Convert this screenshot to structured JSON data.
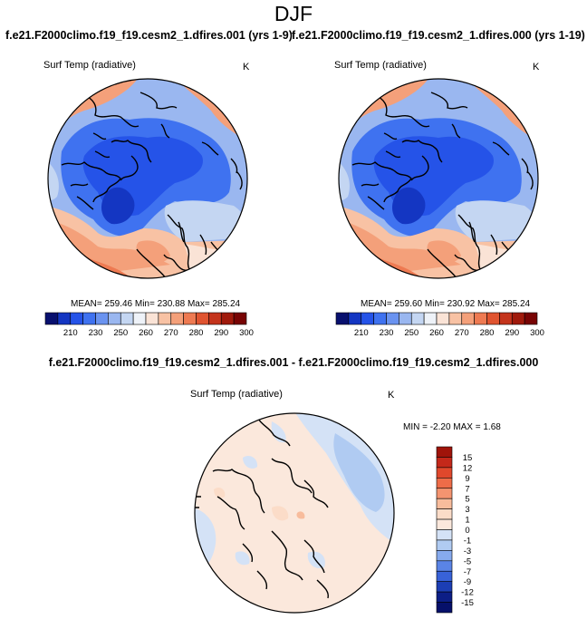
{
  "figure": {
    "title": "DJF",
    "subtitle_left": "f.e21.F2000climo.f19_f19.cesm2_1.dfires.001 (yrs 1-9)",
    "subtitle_right": "f.e21.F2000climo.f19_f19.cesm2_1.dfires.000 (yrs 1-19)",
    "diff_title": "f.e21.F2000climo.f19_f19.cesm2_1.dfires.001 - f.e21.F2000climo.f19_f19.cesm2_1.dfires.000"
  },
  "panels": [
    {
      "variable": "Surf Temp (radiative)",
      "units": "K",
      "stats_text": "MEAN= 259.46  Min= 230.88  Max= 285.24",
      "mean": 259.46,
      "min": 230.88,
      "max": 285.24
    },
    {
      "variable": "Surf Temp (radiative)",
      "units": "K",
      "stats_text": "MEAN= 259.60  Min= 230.92  Max= 285.24",
      "mean": 259.6,
      "min": 230.92,
      "max": 285.24
    },
    {
      "variable": "Surf Temp (radiative)",
      "units": "K",
      "stats_text": "MIN =  -2.20 MAX =   1.68",
      "min": -2.2,
      "max": 1.68
    }
  ],
  "colorbar_abs": {
    "tick_labels": [
      "210",
      "230",
      "250",
      "260",
      "270",
      "280",
      "290",
      "300"
    ],
    "colors": [
      "#08106e",
      "#1436c2",
      "#2553e8",
      "#3f72f0",
      "#6a93f0",
      "#9ab7f0",
      "#c4d6f2",
      "#eef2f8",
      "#fae3d6",
      "#f8c2a4",
      "#f4a07a",
      "#ee7a52",
      "#e05430",
      "#c4341c",
      "#a01a0c",
      "#780404"
    ]
  },
  "colorbar_diff": {
    "tick_labels": [
      "15",
      "12",
      "9",
      "7",
      "5",
      "3",
      "1",
      "0",
      "-1",
      "-3",
      "-5",
      "-7",
      "-9",
      "-12",
      "-15"
    ],
    "colors": [
      "#a0140a",
      "#c4281a",
      "#e0482c",
      "#ee6c48",
      "#f49470",
      "#f8bc9c",
      "#fbdcc8",
      "#fbe8dc",
      "#d4e2f6",
      "#b0cbf2",
      "#86aaee",
      "#5a84e6",
      "#3862d8",
      "#1c3eb4",
      "#0c1e86",
      "#06106a"
    ]
  }
}
